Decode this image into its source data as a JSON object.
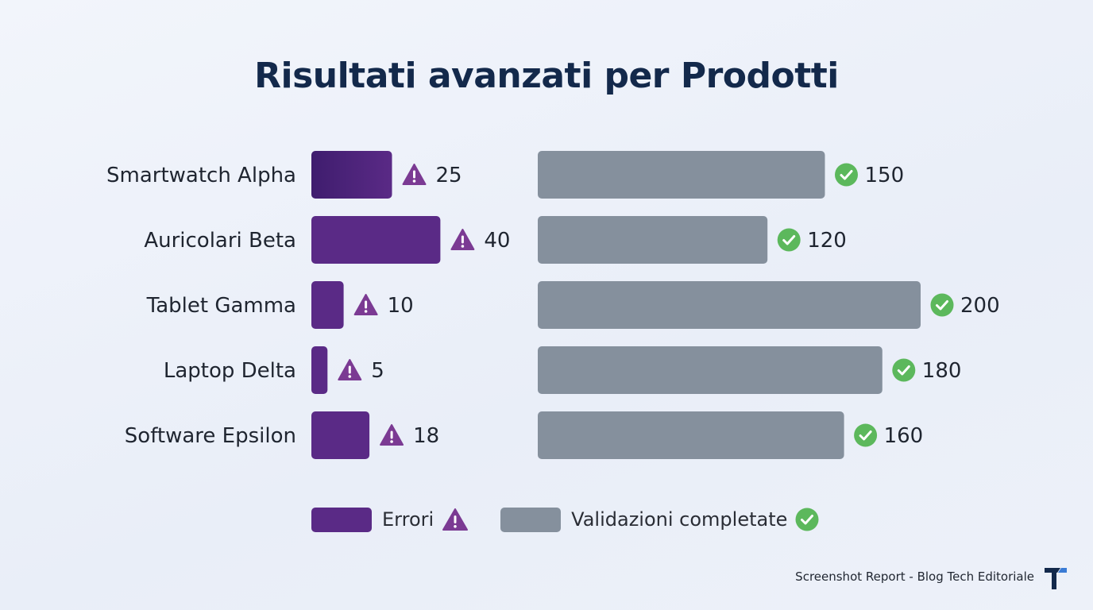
{
  "title": "Risultati avanzati per Prodotti",
  "chart_data": {
    "type": "bar",
    "orientation": "horizontal",
    "categories": [
      "Smartwatch Alpha",
      "Auricolari Beta",
      "Tablet Gamma",
      "Laptop Delta",
      "Software Epsilon"
    ],
    "series": [
      {
        "name": "Errori",
        "values": [
          25,
          40,
          10,
          5,
          18
        ],
        "color": "#5a2a86",
        "icon": "warning-triangle-icon",
        "icon_color": "#7b3a93"
      },
      {
        "name": "Validazioni completate",
        "values": [
          150,
          120,
          200,
          180,
          160
        ],
        "color": "#85909d",
        "icon": "check-circle-icon",
        "icon_color": "#5cb85c"
      }
    ]
  },
  "legend": {
    "errors_label": "Errori",
    "validations_label": "Validazioni completate"
  },
  "footer": {
    "text": "Screenshot Report - Blog Tech Editoriale",
    "logo_icon": "t-logo-icon"
  }
}
